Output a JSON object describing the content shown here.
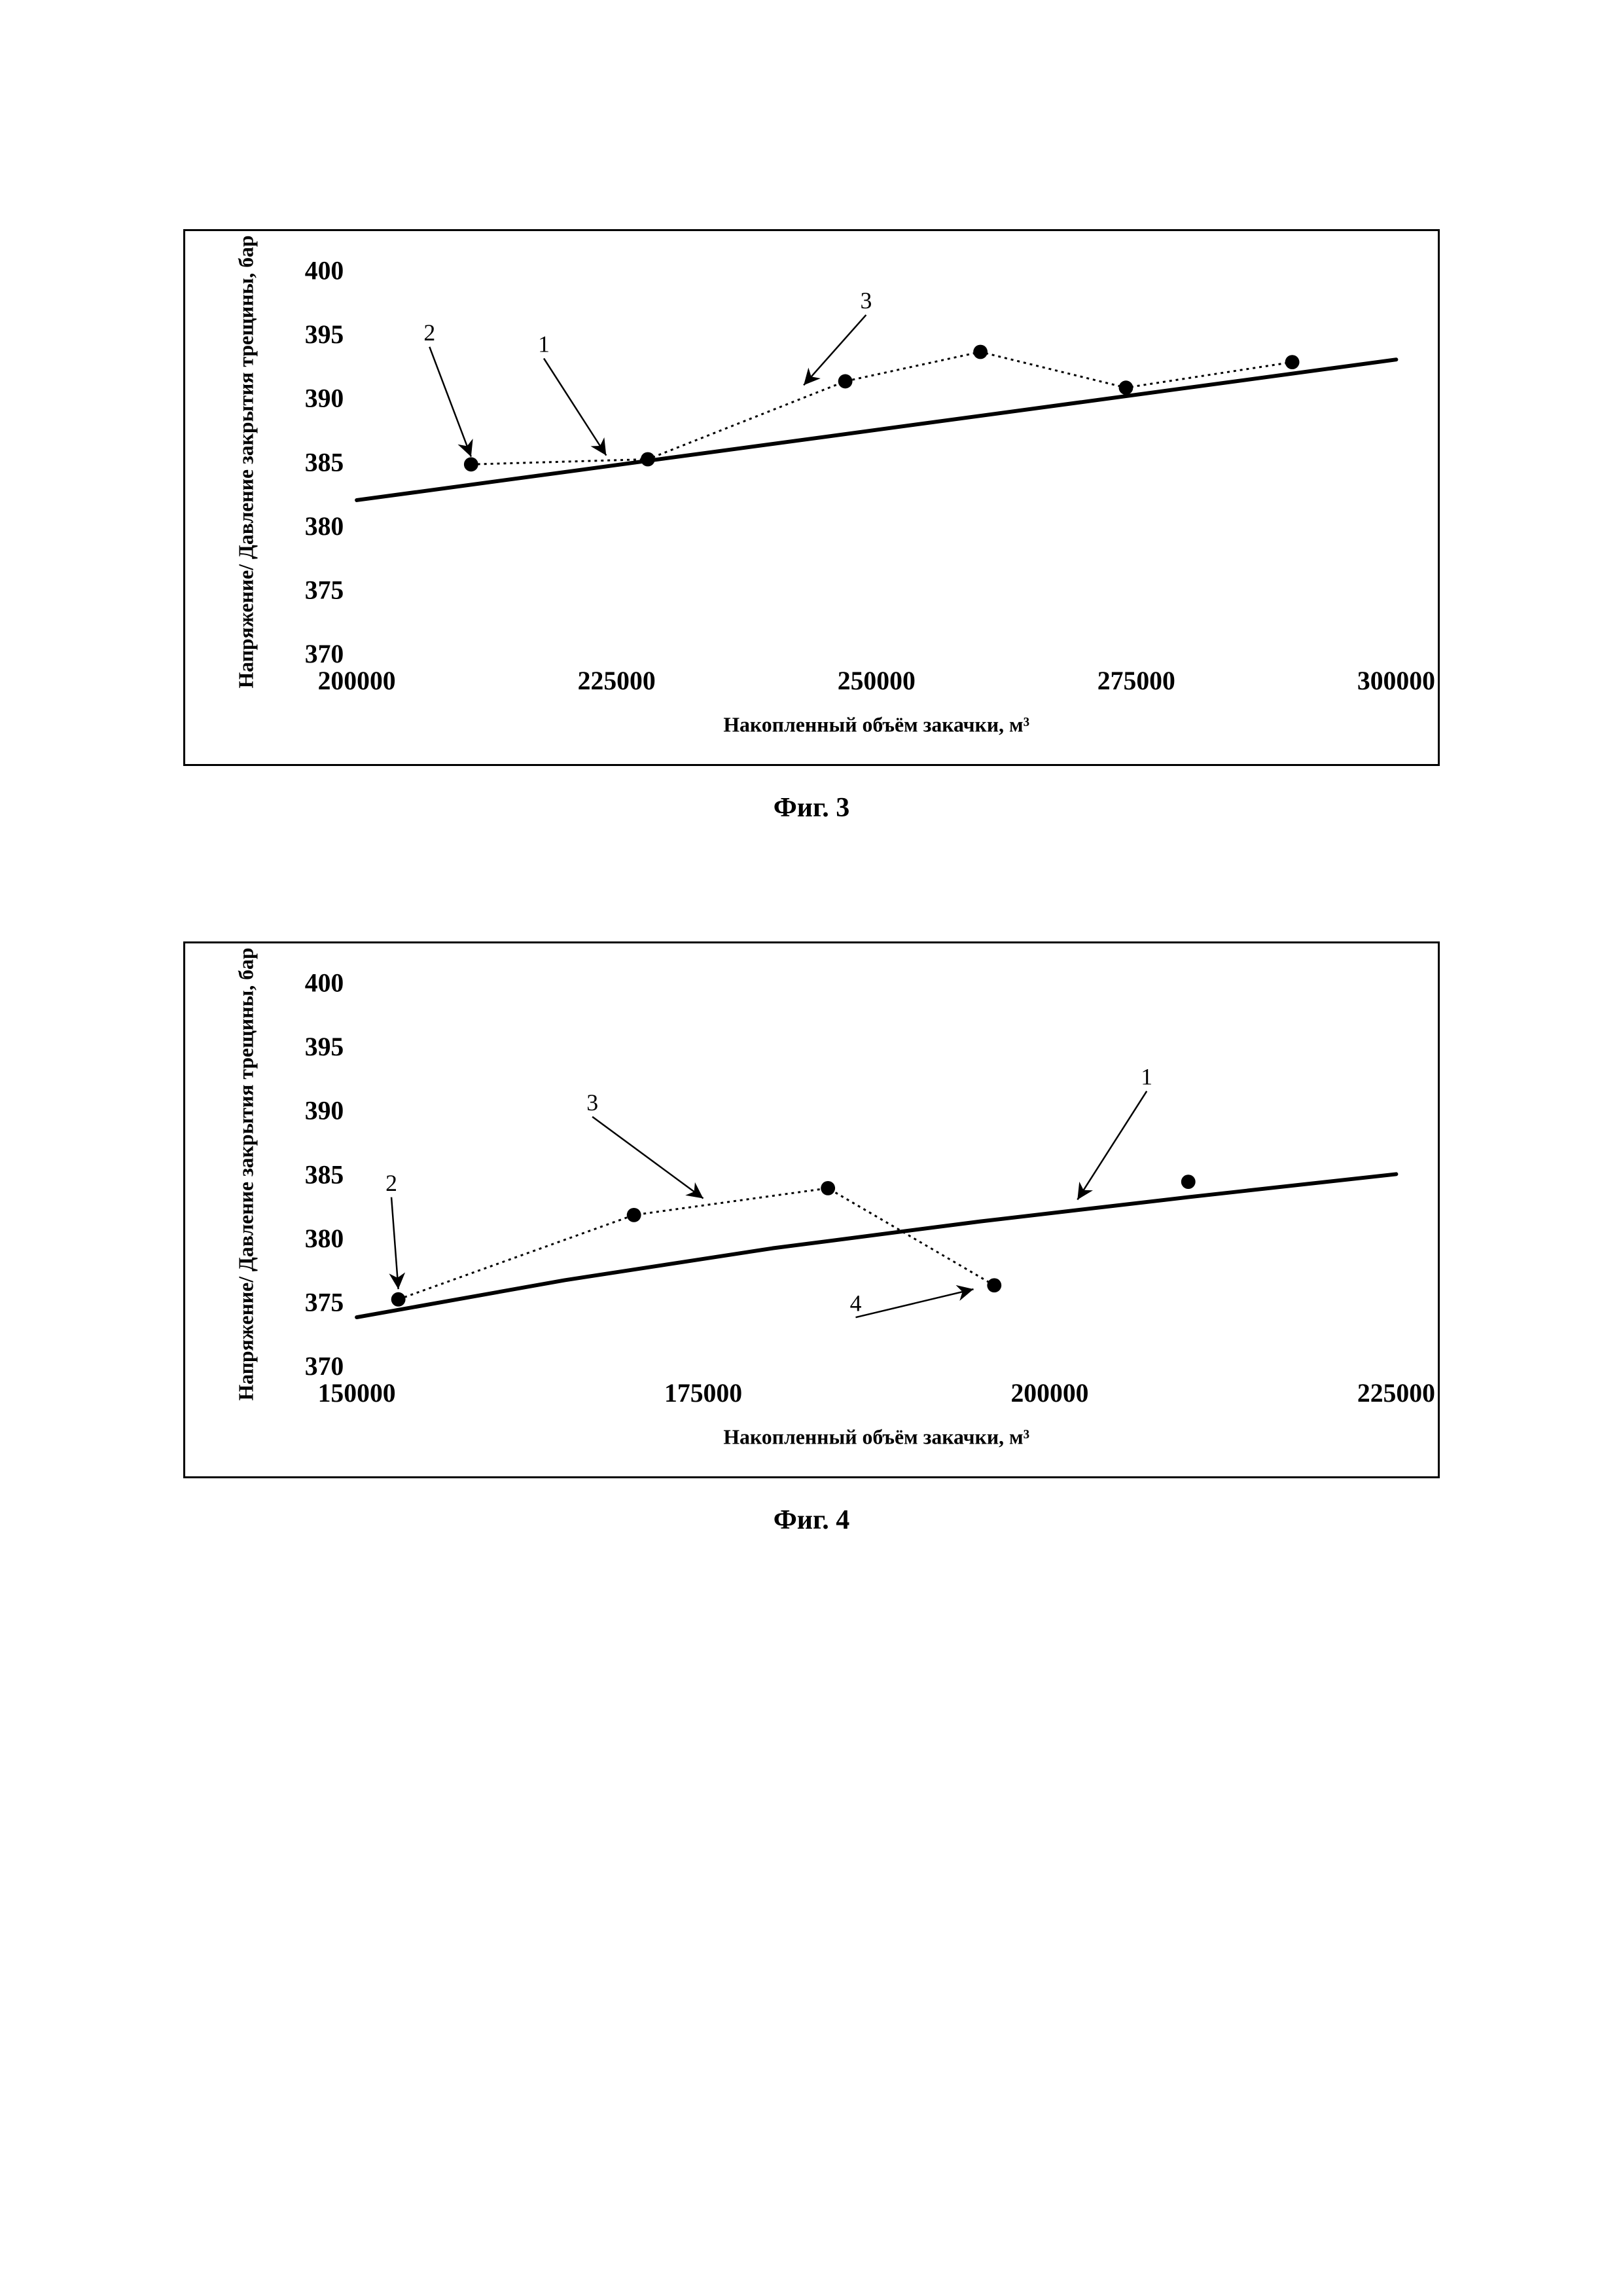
{
  "fig3": {
    "caption": "Фиг. 3",
    "type": "scatter-line",
    "xlabel": "Накопленный объём закачки, м³",
    "ylabel": "Напряжение/ Давление закрытия трещины, бар",
    "xlim": [
      200000,
      300000
    ],
    "ylim": [
      370,
      400
    ],
    "xticks": [
      200000,
      225000,
      250000,
      275000,
      300000
    ],
    "yticks": [
      370,
      375,
      380,
      385,
      390,
      395,
      400
    ],
    "background_color": "#ffffff",
    "axis_color": "#000000",
    "tick_fontsize": 40,
    "label_fontsize": 32,
    "trend_line": {
      "color": "#000000",
      "width": 6,
      "points": [
        [
          200000,
          382.0
        ],
        [
          300000,
          393.0
        ]
      ]
    },
    "dotted_path": {
      "color": "#000000",
      "width": 3,
      "dash": "4 6",
      "points": [
        [
          211000,
          384.8
        ],
        [
          228000,
          385.2
        ],
        [
          247000,
          391.3
        ],
        [
          260000,
          393.6
        ],
        [
          274000,
          390.8
        ],
        [
          290000,
          392.8
        ]
      ]
    },
    "markers": {
      "color": "#000000",
      "radius": 11,
      "points": [
        [
          211000,
          384.8
        ],
        [
          228000,
          385.2
        ],
        [
          247000,
          391.3
        ],
        [
          260000,
          393.6
        ],
        [
          274000,
          390.8
        ],
        [
          290000,
          392.8
        ]
      ]
    },
    "annotations": [
      {
        "label": "2",
        "label_at": [
          207000,
          394.5
        ],
        "points_to": [
          211000,
          385.4
        ],
        "head": true
      },
      {
        "label": "1",
        "label_at": [
          218000,
          393.6
        ],
        "points_to": [
          224000,
          385.5
        ],
        "head": true
      },
      {
        "label": "3",
        "label_at": [
          249000,
          397.0
        ],
        "points_to": [
          243000,
          391.0
        ],
        "head": true
      }
    ]
  },
  "fig4": {
    "caption": "Фиг. 4",
    "type": "scatter-line",
    "xlabel": "Накопленный объём закачки, м³",
    "ylabel": "Напряжение/ Давление закрытия трещины, бар",
    "xlim": [
      150000,
      225000
    ],
    "ylim": [
      370,
      400
    ],
    "xticks": [
      150000,
      175000,
      200000,
      225000
    ],
    "yticks": [
      370,
      375,
      380,
      385,
      390,
      395,
      400
    ],
    "background_color": "#ffffff",
    "axis_color": "#000000",
    "tick_fontsize": 40,
    "label_fontsize": 32,
    "trend_line": {
      "color": "#000000",
      "width": 6,
      "points": [
        [
          150000,
          373.8
        ],
        [
          165000,
          376.7
        ],
        [
          180000,
          379.2
        ],
        [
          195000,
          381.3
        ],
        [
          210000,
          383.2
        ],
        [
          225000,
          385.0
        ]
      ]
    },
    "dotted_path": {
      "color": "#000000",
      "width": 3,
      "dash": "4 6",
      "points": [
        [
          153000,
          375.2
        ],
        [
          170000,
          381.8
        ],
        [
          184000,
          383.9
        ],
        [
          196000,
          376.3
        ]
      ]
    },
    "extra_marker": {
      "point": [
        210000,
        384.4
      ]
    },
    "markers": {
      "color": "#000000",
      "radius": 11,
      "points": [
        [
          153000,
          375.2
        ],
        [
          170000,
          381.8
        ],
        [
          184000,
          383.9
        ],
        [
          196000,
          376.3
        ],
        [
          210000,
          384.4
        ]
      ]
    },
    "annotations": [
      {
        "label": "2",
        "label_at": [
          152500,
          383.7
        ],
        "points_to": [
          153000,
          376.0
        ],
        "head": true
      },
      {
        "label": "3",
        "label_at": [
          167000,
          390.0
        ],
        "points_to": [
          175000,
          383.1
        ],
        "head": true
      },
      {
        "label": "1",
        "label_at": [
          207000,
          392.0
        ],
        "points_to": [
          202000,
          383.0
        ],
        "head": true
      },
      {
        "label": "4",
        "label_at": [
          186000,
          374.3
        ],
        "points_to": [
          194500,
          376.0
        ],
        "head": true
      }
    ]
  }
}
